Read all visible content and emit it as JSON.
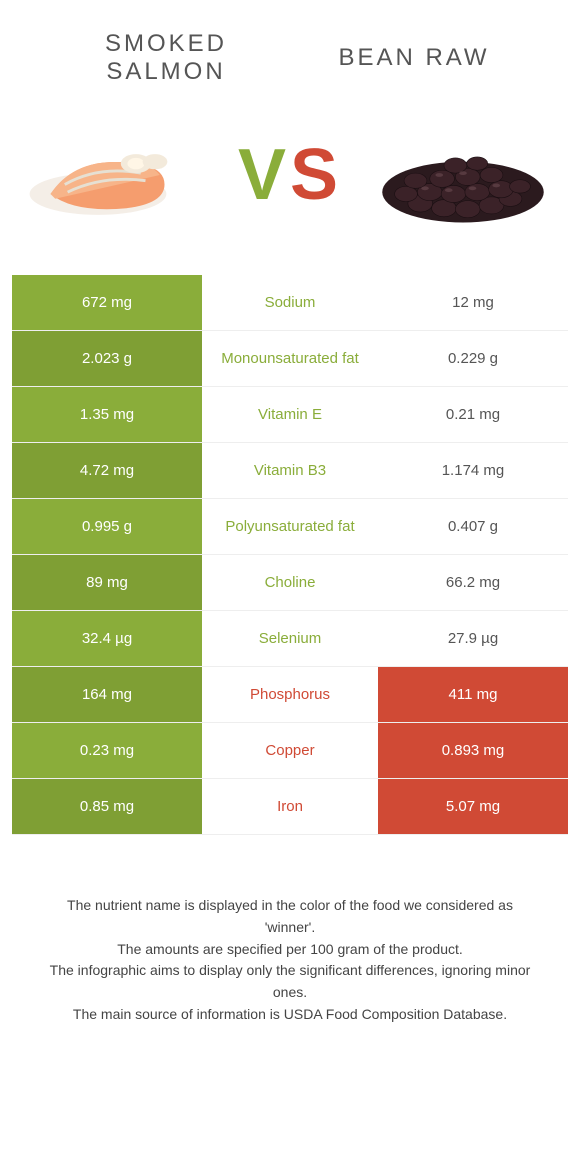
{
  "colors": {
    "food1": "#8aad3a",
    "food2": "#d04a35",
    "row_alt_dark": "#7f9f34",
    "text_muted": "#555555",
    "border": "#eeeeee"
  },
  "header": {
    "title1_line1": "SMOKED",
    "title1_line2": "SALMON",
    "title2": "BEAN RAW"
  },
  "vs": {
    "v": "V",
    "s": "S"
  },
  "rows": [
    {
      "nutrient": "Sodium",
      "left": "672 mg",
      "right": "12 mg",
      "winner": "food1"
    },
    {
      "nutrient": "Monounsaturated fat",
      "left": "2.023 g",
      "right": "0.229 g",
      "winner": "food1"
    },
    {
      "nutrient": "Vitamin E",
      "left": "1.35 mg",
      "right": "0.21 mg",
      "winner": "food1"
    },
    {
      "nutrient": "Vitamin B3",
      "left": "4.72 mg",
      "right": "1.174 mg",
      "winner": "food1"
    },
    {
      "nutrient": "Polyunsaturated fat",
      "left": "0.995 g",
      "right": "0.407 g",
      "winner": "food1"
    },
    {
      "nutrient": "Choline",
      "left": "89 mg",
      "right": "66.2 mg",
      "winner": "food1"
    },
    {
      "nutrient": "Selenium",
      "left": "32.4 µg",
      "right": "27.9 µg",
      "winner": "food1"
    },
    {
      "nutrient": "Phosphorus",
      "left": "164 mg",
      "right": "411 mg",
      "winner": "food2"
    },
    {
      "nutrient": "Copper",
      "left": "0.23 mg",
      "right": "0.893 mg",
      "winner": "food2"
    },
    {
      "nutrient": "Iron",
      "left": "0.85 mg",
      "right": "5.07 mg",
      "winner": "food2"
    }
  ],
  "footnotes": {
    "line1": "The nutrient name is displayed in the color of the food we considered as 'winner'.",
    "line2": "The amounts are specified per 100 gram of the product.",
    "line3": "The infographic aims to display only the significant differences, ignoring minor ones.",
    "line4": "The main source of information is USDA Food Composition Database."
  }
}
